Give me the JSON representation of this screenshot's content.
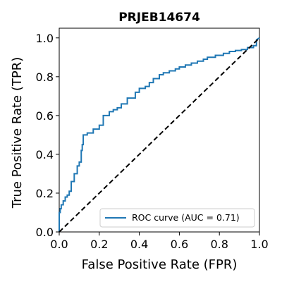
{
  "chart_data": {
    "type": "line",
    "title": "PRJEB14674",
    "xlabel": "False Positive Rate (FPR)",
    "ylabel": "True Positive Rate (TPR)",
    "xlim": [
      0.0,
      1.0
    ],
    "ylim": [
      0.0,
      1.05
    ],
    "grid": false,
    "legend_position": "lower-right",
    "xticks": [
      "0.0",
      "0.2",
      "0.4",
      "0.6",
      "0.8",
      "1.0"
    ],
    "yticks": [
      "0.0",
      "0.2",
      "0.4",
      "0.6",
      "0.8",
      "1.0"
    ],
    "series": [
      {
        "name": "ROC curve (AUC = 0.71)",
        "color": "#1f77b4",
        "style": "solid",
        "x": [
          0.0,
          0.0,
          0.005,
          0.005,
          0.01,
          0.01,
          0.02,
          0.02,
          0.03,
          0.03,
          0.04,
          0.04,
          0.05,
          0.05,
          0.06,
          0.06,
          0.075,
          0.075,
          0.09,
          0.09,
          0.1,
          0.1,
          0.11,
          0.11,
          0.115,
          0.115,
          0.12,
          0.12,
          0.14,
          0.14,
          0.17,
          0.17,
          0.2,
          0.2,
          0.22,
          0.22,
          0.25,
          0.25,
          0.27,
          0.27,
          0.29,
          0.29,
          0.31,
          0.31,
          0.34,
          0.34,
          0.38,
          0.38,
          0.4,
          0.4,
          0.43,
          0.43,
          0.45,
          0.45,
          0.47,
          0.47,
          0.5,
          0.5,
          0.52,
          0.52,
          0.55,
          0.55,
          0.58,
          0.58,
          0.6,
          0.6,
          0.63,
          0.63,
          0.66,
          0.66,
          0.69,
          0.69,
          0.72,
          0.72,
          0.74,
          0.74,
          0.78,
          0.78,
          0.82,
          0.82,
          0.85,
          0.85,
          0.88,
          0.88,
          0.91,
          0.91,
          0.94,
          0.94,
          0.97,
          0.97,
          0.985,
          0.985,
          1.0
        ],
        "y": [
          0.0,
          0.1,
          0.1,
          0.12,
          0.12,
          0.14,
          0.14,
          0.16,
          0.16,
          0.18,
          0.18,
          0.19,
          0.19,
          0.21,
          0.21,
          0.26,
          0.26,
          0.3,
          0.3,
          0.34,
          0.34,
          0.36,
          0.36,
          0.42,
          0.42,
          0.45,
          0.45,
          0.5,
          0.5,
          0.51,
          0.51,
          0.53,
          0.53,
          0.55,
          0.55,
          0.6,
          0.6,
          0.62,
          0.62,
          0.63,
          0.63,
          0.64,
          0.64,
          0.66,
          0.66,
          0.69,
          0.69,
          0.72,
          0.72,
          0.74,
          0.74,
          0.75,
          0.75,
          0.77,
          0.77,
          0.79,
          0.79,
          0.81,
          0.81,
          0.82,
          0.82,
          0.83,
          0.83,
          0.84,
          0.84,
          0.85,
          0.85,
          0.86,
          0.86,
          0.87,
          0.87,
          0.88,
          0.88,
          0.89,
          0.89,
          0.9,
          0.9,
          0.91,
          0.91,
          0.92,
          0.92,
          0.93,
          0.93,
          0.935,
          0.935,
          0.94,
          0.94,
          0.95,
          0.95,
          0.96,
          0.96,
          0.99,
          1.0
        ]
      },
      {
        "color": "#000000",
        "style": "dashed",
        "x": [
          0.0,
          1.0
        ],
        "y": [
          0.0,
          1.0
        ]
      }
    ]
  }
}
